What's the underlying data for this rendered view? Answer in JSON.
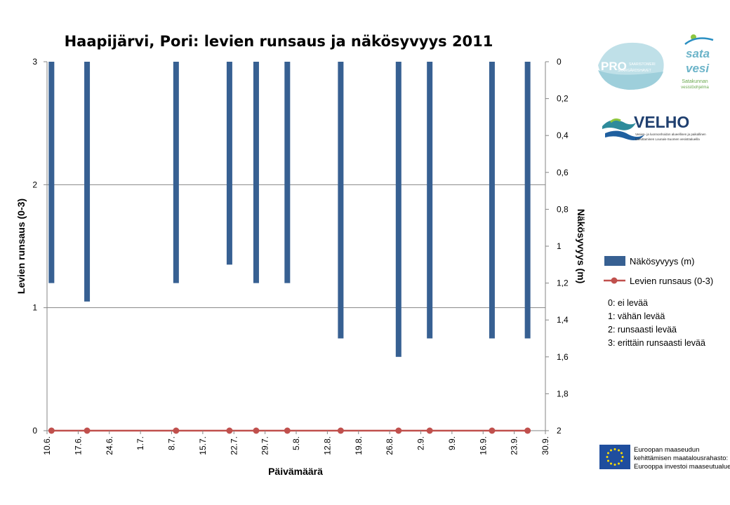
{
  "chart_data": {
    "type": "bar",
    "title": "Haapijärvi, Pori: levien runsaus ja näkösyvyys 2011",
    "xlabel": "Päivämäärä",
    "ylabel_left": "Levien runsaus (0-3)",
    "ylabel_right": "Näkösyvyys (m)",
    "x_ticks": [
      "10.6.",
      "17.6.",
      "24.6.",
      "1.7.",
      "8.7.",
      "15.7.",
      "22.7.",
      "29.7.",
      "5.8.",
      "12.8.",
      "19.8.",
      "26.8.",
      "2.9.",
      "9.9.",
      "16.9.",
      "23.9.",
      "30.9."
    ],
    "ylim_left": [
      0,
      3
    ],
    "yticks_left": [
      "0",
      "1",
      "2",
      "3"
    ],
    "ylim_right": [
      0,
      2
    ],
    "right_axis_reversed": true,
    "yticks_right": [
      "0",
      "0,2",
      "0,4",
      "0,6",
      "0,8",
      "1",
      "1,2",
      "1,4",
      "1,6",
      "1,8",
      "2"
    ],
    "x_start_day": 0,
    "x_end_day": 112,
    "series": [
      {
        "name": "Näkösyvyys (m)",
        "type": "bar",
        "axis": "right",
        "color": "#376092",
        "points": [
          {
            "date": "11.6.",
            "value": 1.2
          },
          {
            "date": "19.6.",
            "value": 1.3
          },
          {
            "date": "9.7.",
            "value": 1.2
          },
          {
            "date": "21.7.",
            "value": 1.1
          },
          {
            "date": "27.7.",
            "value": 1.2
          },
          {
            "date": "3.8.",
            "value": 1.2
          },
          {
            "date": "15.8.",
            "value": 1.5
          },
          {
            "date": "28.8.",
            "value": 1.6
          },
          {
            "date": "4.9.",
            "value": 1.5
          },
          {
            "date": "18.9.",
            "value": 1.5
          },
          {
            "date": "26.9.",
            "value": 1.5
          }
        ]
      },
      {
        "name": "Levien runsaus (0-3)",
        "type": "line",
        "axis": "left",
        "color": "#c0504d",
        "points": [
          {
            "date": "11.6.",
            "value": 0
          },
          {
            "date": "19.6.",
            "value": 0
          },
          {
            "date": "9.7.",
            "value": 0
          },
          {
            "date": "21.7.",
            "value": 0
          },
          {
            "date": "27.7.",
            "value": 0
          },
          {
            "date": "3.8.",
            "value": 0
          },
          {
            "date": "15.8.",
            "value": 0
          },
          {
            "date": "28.8.",
            "value": 0
          },
          {
            "date": "4.9.",
            "value": 0
          },
          {
            "date": "18.9.",
            "value": 0
          },
          {
            "date": "26.9.",
            "value": 0
          }
        ]
      }
    ],
    "grid": true,
    "legend_position": "right"
  },
  "legend": {
    "bar_label": "Näkösyvyys (m)",
    "line_label": "Levien runsaus (0-3)"
  },
  "notes": [
    "0: ei levää",
    "1: vähän levää",
    "2: runsaasti levää",
    "3: erittäin runsaasti levää"
  ],
  "logos": {
    "pro": {
      "main": "PRO",
      "line1": "SAARISTOMERI",
      "line2": "SKÄRGÅRDSHAVET"
    },
    "satavesi": {
      "line1": "sata",
      "line2": "vesi",
      "line3": "Satakunnan",
      "line4": "vesistöohjelma"
    },
    "velho": {
      "name": "VELHO",
      "desc1": "Vesien- ja luonnonhoidon alueellinen ja paikallinen",
      "desc2": "toteuttaminen Lounais-Suomen vesistöalueilla"
    },
    "eu": {
      "line1": "Euroopan maaseudun",
      "line2": "kehittämisen maatalousrahasto:",
      "line3": "Eurooppa investoi maaseutualueisiin"
    }
  },
  "colors": {
    "bar": "#376092",
    "line": "#c0504d",
    "grid": "#868686"
  }
}
